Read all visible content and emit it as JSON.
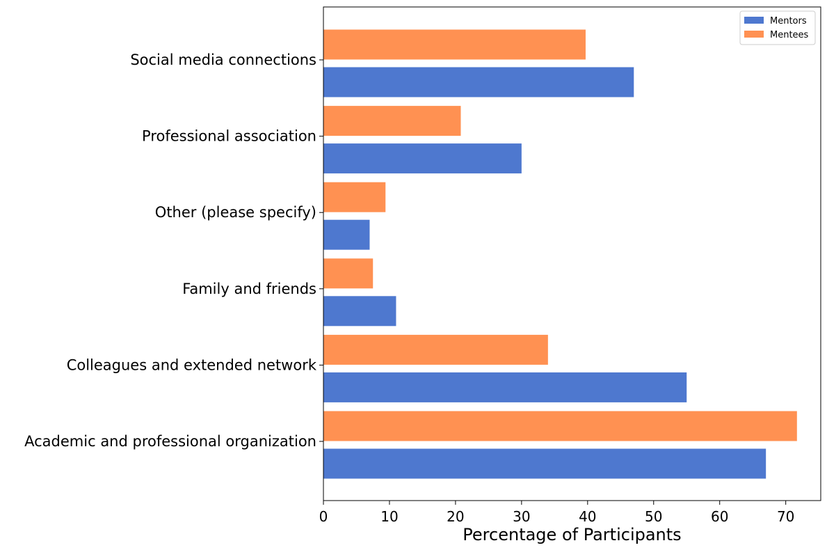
{
  "chart_data": {
    "type": "bar",
    "orientation": "horizontal",
    "categories": [
      "Academic and professional organization",
      "Colleagues and extended network",
      "Family and friends",
      "Other (please specify)",
      "Professional association",
      "Social media connections"
    ],
    "series": [
      {
        "name": "Mentors",
        "color": "#4e78cf",
        "values": [
          67.0,
          55.0,
          11.0,
          7.0,
          30.0,
          47.0
        ]
      },
      {
        "name": "Mentees",
        "color": "#ff9152",
        "values": [
          71.7,
          34.0,
          7.5,
          9.4,
          20.8,
          39.7
        ]
      }
    ],
    "xlabel": "Percentage of Participants",
    "ylabel": "",
    "xlim": [
      0,
      75.3
    ],
    "xticks": [
      0,
      10,
      20,
      30,
      40,
      50,
      60,
      70
    ],
    "grid": false,
    "legend_position": "top-right"
  }
}
